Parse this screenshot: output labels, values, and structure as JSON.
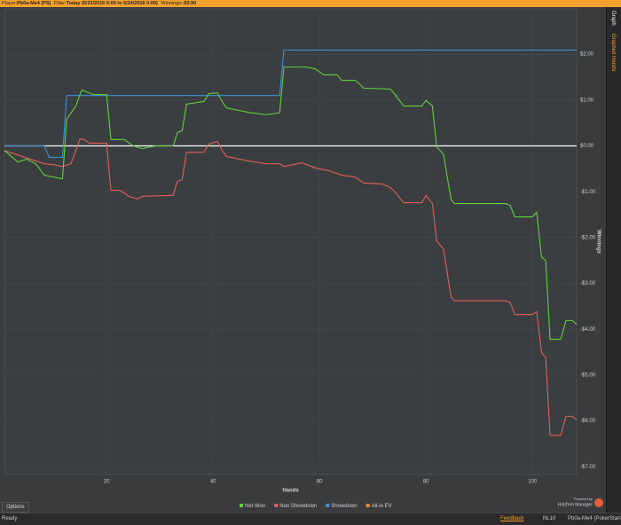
{
  "header": {
    "player_label": "Player:",
    "player": "Pb0a-Me4 (PS)",
    "filter_label": "Filter:",
    "filter": "Today (5/23/2016 0:00 to 5/24/2016 0:00)",
    "winnings_label": "Winnings:",
    "winnings": "-$3.90"
  },
  "side_tabs": [
    "Graph",
    "Graphed Hands"
  ],
  "options": "Options",
  "branding": {
    "line1": "Powered by",
    "line2": "Hold'em Manager"
  },
  "status_bar": {
    "status": "Ready",
    "feedback": "Feedback",
    "stakes": "NL10",
    "account": "Pb0a-Me4 (PokerStars)"
  },
  "chart_data": {
    "type": "line",
    "xlabel": "Hands",
    "ylabel": "Winnings",
    "xlim": [
      0.8,
      108.3
    ],
    "xticks": [
      20,
      40,
      60,
      80,
      100
    ],
    "ylim": [
      -7.17,
      2.99
    ],
    "yticks": [
      {
        "value": 2,
        "label": "$2.00"
      },
      {
        "value": 1,
        "label": "$1.00"
      },
      {
        "value": 0,
        "label": "$0.00"
      },
      {
        "value": -1,
        "label": "-$1.00"
      },
      {
        "value": -2,
        "label": "-$2.00"
      },
      {
        "value": -3,
        "label": "-$3.00"
      },
      {
        "value": -4,
        "label": "-$4.00"
      },
      {
        "value": -5,
        "label": "-$5.00"
      },
      {
        "value": -6,
        "label": "-$6.00"
      },
      {
        "value": -7,
        "label": "-$7.00"
      }
    ],
    "grid": true,
    "reference_line": {
      "value": 0,
      "color": "#ffffff"
    },
    "series": [
      {
        "name": "Net Won",
        "color": "#5fd33a",
        "x": [
          0.8,
          3.3,
          5,
          6.7,
          8.3,
          10,
          11.7,
          12.5,
          14.2,
          15.3,
          17.5,
          20,
          20.8,
          23.3,
          25,
          26.7,
          29.2,
          32.5,
          33.3,
          34.2,
          35,
          38.3,
          39.2,
          40.8,
          41.7,
          42.5,
          46.7,
          50,
          52.5,
          53.3,
          57.5,
          59.2,
          60.8,
          63.3,
          64.2,
          66.7,
          67.5,
          68.3,
          73.3,
          74.2,
          75.8,
          79.2,
          80,
          81.2,
          82,
          83.3,
          84.7,
          85.3,
          95,
          95.8,
          96.7,
          100,
          100.8,
          101.7,
          102.5,
          103.3,
          105.3,
          106.3,
          107.5,
          108.3
        ],
        "values": [
          -0.1,
          -0.35,
          -0.29,
          -0.39,
          -0.64,
          -0.68,
          -0.72,
          0.58,
          0.87,
          1.22,
          1.12,
          1.12,
          0.14,
          0.14,
          0,
          -0.06,
          0,
          0,
          0.29,
          0.33,
          0.91,
          0.97,
          1.14,
          1.16,
          0.97,
          0.83,
          0.73,
          0.68,
          0.72,
          1.72,
          1.72,
          1.68,
          1.55,
          1.55,
          1.43,
          1.43,
          1.35,
          1.26,
          1.24,
          1.12,
          0.87,
          0.87,
          0.99,
          0.87,
          -0.02,
          -0.19,
          -1.16,
          -1.26,
          -1.26,
          -1.3,
          -1.55,
          -1.55,
          -1.45,
          -2.42,
          -2.51,
          -4.22,
          -4.22,
          -3.81,
          -3.81,
          -3.9
        ]
      },
      {
        "name": "Non Showdown",
        "color": "#e0605a",
        "x": [
          0.8,
          8.3,
          10,
          11.7,
          13.3,
          15,
          15.8,
          16.7,
          20,
          20.8,
          22.5,
          24.2,
          25.8,
          26.7,
          32.5,
          33.3,
          34.2,
          35,
          38.3,
          39.2,
          40.8,
          41.7,
          42.5,
          46.7,
          50,
          52.5,
          53.3,
          56.7,
          59.2,
          61.7,
          64.2,
          66.7,
          68.3,
          71.7,
          73.3,
          74.2,
          75.8,
          79.2,
          80,
          81.2,
          82,
          83.3,
          84.7,
          85.3,
          95,
          95.8,
          96.7,
          100,
          100.8,
          101.7,
          102.5,
          103.3,
          105.3,
          106.3,
          107.5,
          108.3
        ],
        "values": [
          -0.1,
          -0.39,
          -0.41,
          -0.45,
          -0.39,
          0.15,
          0.14,
          0.06,
          0.06,
          -0.97,
          -0.97,
          -1.1,
          -1.16,
          -1.1,
          -1.08,
          -0.77,
          -0.74,
          -0.14,
          -0.14,
          0.04,
          0.1,
          -0.1,
          -0.23,
          -0.33,
          -0.39,
          -0.39,
          -0.45,
          -0.37,
          -0.48,
          -0.54,
          -0.64,
          -0.68,
          -0.81,
          -0.83,
          -0.91,
          -1.01,
          -1.24,
          -1.24,
          -1.08,
          -1.26,
          -2.07,
          -2.26,
          -3.29,
          -3.38,
          -3.38,
          -3.42,
          -3.68,
          -3.68,
          -3.62,
          -4.51,
          -4.62,
          -6.32,
          -6.32,
          -5.9,
          -5.9,
          -5.98
        ]
      },
      {
        "name": "Showdown",
        "color": "#3a8fd8",
        "x": [
          0.8,
          8.3,
          9.2,
          11.7,
          12.5,
          52.5,
          53.3,
          108.3
        ],
        "values": [
          0,
          0,
          -0.25,
          -0.25,
          1.1,
          1.1,
          2.09,
          2.09
        ]
      },
      {
        "name": "All-in EV",
        "color": "#f08a24"
      }
    ]
  }
}
